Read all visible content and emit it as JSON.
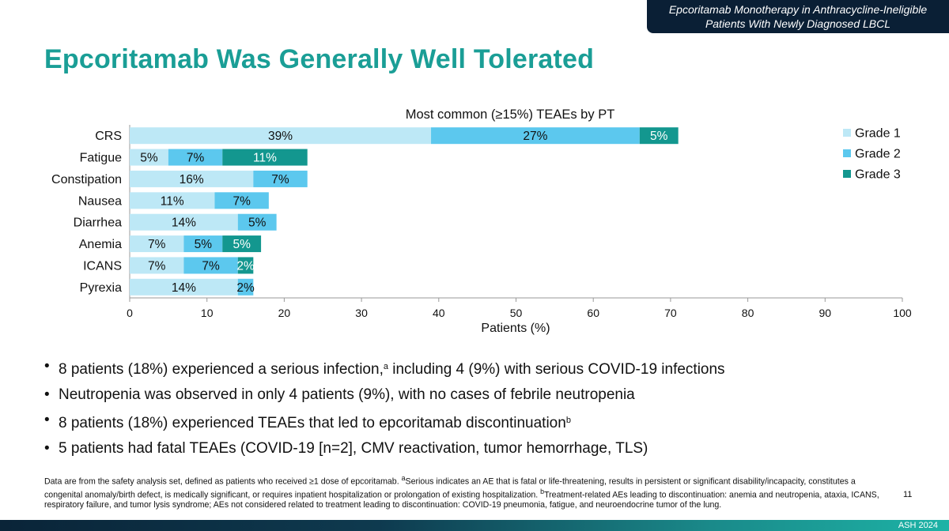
{
  "header": {
    "banner_line1": "Epcoritamab Monotherapy in Anthracycline-Ineligible",
    "banner_line2": "Patients With Newly Diagnosed LBCL",
    "title": "Epcoritamab Was Generally Well Tolerated"
  },
  "colors": {
    "title": "#1a9e96",
    "grade1": "#bde8f6",
    "grade2": "#5cc8ee",
    "grade3": "#13978f",
    "banner": "#0a1f35"
  },
  "chart_data": {
    "type": "bar",
    "orientation": "horizontal",
    "stacked": true,
    "title": "Most common (≥15%) TEAEs by PT",
    "xlabel": "Patients (%)",
    "ylabel": "",
    "xlim": [
      0,
      100
    ],
    "xticks": [
      0,
      10,
      20,
      30,
      40,
      50,
      60,
      70,
      80,
      90,
      100
    ],
    "categories": [
      "CRS",
      "Fatigue",
      "Constipation",
      "Nausea",
      "Diarrhea",
      "Anemia",
      "ICANS",
      "Pyrexia"
    ],
    "legend_position": "top-right",
    "series": [
      {
        "name": "Grade 1",
        "color": "#bde8f6",
        "values": [
          39,
          5,
          16,
          11,
          14,
          7,
          7,
          14
        ],
        "labels": [
          "39%",
          "5%",
          "16%",
          "11%",
          "14%",
          "7%",
          "7%",
          "14%"
        ]
      },
      {
        "name": "Grade 2",
        "color": "#5cc8ee",
        "values": [
          27,
          7,
          7,
          7,
          5,
          5,
          7,
          2
        ],
        "labels": [
          "27%",
          "7%",
          "7%",
          "7%",
          "5%",
          "5%",
          "7%",
          "2%"
        ]
      },
      {
        "name": "Grade 3",
        "color": "#13978f",
        "values": [
          5,
          11,
          0,
          0,
          0,
          5,
          2,
          0
        ],
        "labels": [
          "5%",
          "11%",
          "",
          "",
          "",
          "5%",
          "2%",
          ""
        ]
      }
    ]
  },
  "bullets": [
    {
      "pre": "8 patients (18%) experienced a serious infection,",
      "sup": "a",
      "post": " including 4 (9%) with serious COVID-19 infections"
    },
    {
      "pre": "Neutropenia was observed in only 4 patients (9%), with no cases of febrile neutropenia",
      "sup": "",
      "post": ""
    },
    {
      "pre": "8 patients (18%) experienced TEAEs that led to epcoritamab discontinuation",
      "sup": "b",
      "post": ""
    },
    {
      "pre": "5 patients had fatal TEAEs (COVID-19 [n=2], CMV reactivation, tumor hemorrhage, TLS)",
      "sup": "",
      "post": ""
    }
  ],
  "bullet_symbol": "•",
  "footnote": {
    "text1": "Data are from the safety analysis set, defined as patients who received ≥1 dose of epcoritamab. ",
    "sup_a": "a",
    "text2": "Serious indicates an AE that is fatal or life-threatening, results in persistent or significant disability/incapacity, constitutes a congenital anomaly/birth defect, is medically significant, or requires inpatient hospitalization or prolongation of existing hospitalization. ",
    "sup_b": "b",
    "text3": "Treatment-related AEs leading to discontinuation: anemia and neutropenia, ataxia, ICANS, respiratory failure, and tumor lysis syndrome; AEs not considered related to treatment leading to discontinuation: COVID-19 pneumonia, fatigue, and neuroendocrine tumor of the lung."
  },
  "page_number": "11",
  "footer": {
    "conference": "ASH 2024"
  }
}
